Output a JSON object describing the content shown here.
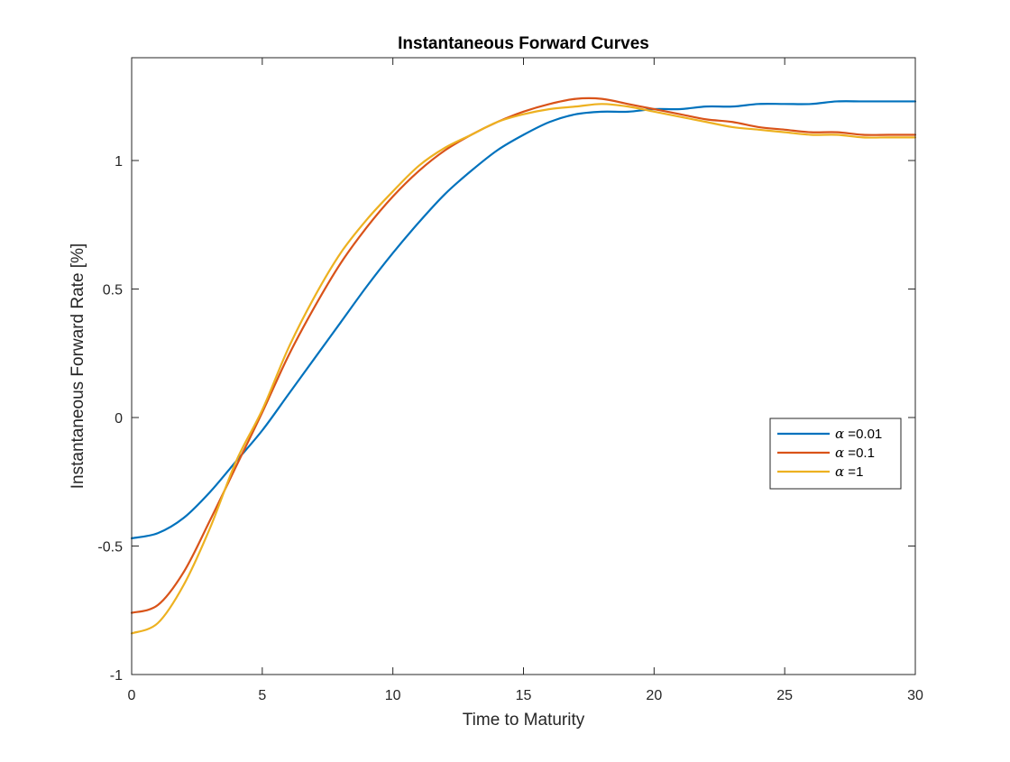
{
  "chart_data": {
    "type": "line",
    "title": "Instantaneous Forward Curves",
    "xlabel": "Time to Maturity",
    "ylabel": "Instantaneous Forward Rate [%]",
    "xlim": [
      0,
      30
    ],
    "ylim": [
      -1,
      1.4
    ],
    "xticks": [
      0,
      5,
      10,
      15,
      20,
      25,
      30
    ],
    "xtick_labels": [
      "0",
      "5",
      "10",
      "15",
      "20",
      "25",
      "30"
    ],
    "yticks": [
      -1,
      -0.5,
      0,
      0.5,
      1
    ],
    "ytick_labels": [
      "-1",
      "-0.5",
      "0",
      "0.5",
      "1"
    ],
    "grid": false,
    "legend_position": "right, below center",
    "series": [
      {
        "name": "α =0.01",
        "legend_symbol": "α",
        "legend_value": " =0.01",
        "color": "#0072BD",
        "x": [
          0,
          1,
          2,
          3,
          4,
          5,
          6,
          7,
          8,
          9,
          10,
          11,
          12,
          13,
          14,
          15,
          16,
          17,
          18,
          19,
          20,
          21,
          22,
          23,
          24,
          25,
          26,
          27,
          28,
          29,
          30
        ],
        "y": [
          -0.47,
          -0.45,
          -0.39,
          -0.29,
          -0.17,
          -0.05,
          0.09,
          0.23,
          0.37,
          0.51,
          0.64,
          0.76,
          0.87,
          0.96,
          1.04,
          1.1,
          1.15,
          1.18,
          1.19,
          1.19,
          1.2,
          1.2,
          1.21,
          1.21,
          1.22,
          1.22,
          1.22,
          1.23,
          1.23,
          1.23,
          1.23
        ]
      },
      {
        "name": "α =0.1",
        "legend_symbol": "α",
        "legend_value": " =0.1",
        "color": "#D95319",
        "x": [
          0,
          1,
          2,
          3,
          4,
          5,
          6,
          7,
          8,
          9,
          10,
          11,
          12,
          13,
          14,
          15,
          16,
          17,
          18,
          19,
          20,
          21,
          22,
          23,
          24,
          25,
          26,
          27,
          28,
          29,
          30
        ],
        "y": [
          -0.76,
          -0.73,
          -0.6,
          -0.4,
          -0.19,
          0.02,
          0.24,
          0.43,
          0.6,
          0.74,
          0.86,
          0.96,
          1.04,
          1.1,
          1.15,
          1.19,
          1.22,
          1.24,
          1.24,
          1.22,
          1.2,
          1.18,
          1.16,
          1.15,
          1.13,
          1.12,
          1.11,
          1.11,
          1.1,
          1.1,
          1.1
        ]
      },
      {
        "name": "α =1",
        "legend_symbol": "α",
        "legend_value": " =1",
        "color": "#EDB120",
        "x": [
          0,
          1,
          2,
          3,
          4,
          5,
          6,
          7,
          8,
          9,
          10,
          11,
          12,
          13,
          14,
          15,
          16,
          17,
          18,
          19,
          20,
          21,
          22,
          23,
          24,
          25,
          26,
          27,
          28,
          29,
          30
        ],
        "y": [
          -0.84,
          -0.8,
          -0.65,
          -0.43,
          -0.17,
          0.03,
          0.27,
          0.47,
          0.64,
          0.77,
          0.88,
          0.98,
          1.05,
          1.1,
          1.15,
          1.18,
          1.2,
          1.21,
          1.22,
          1.21,
          1.19,
          1.17,
          1.15,
          1.13,
          1.12,
          1.11,
          1.1,
          1.1,
          1.09,
          1.09,
          1.09
        ]
      }
    ]
  }
}
